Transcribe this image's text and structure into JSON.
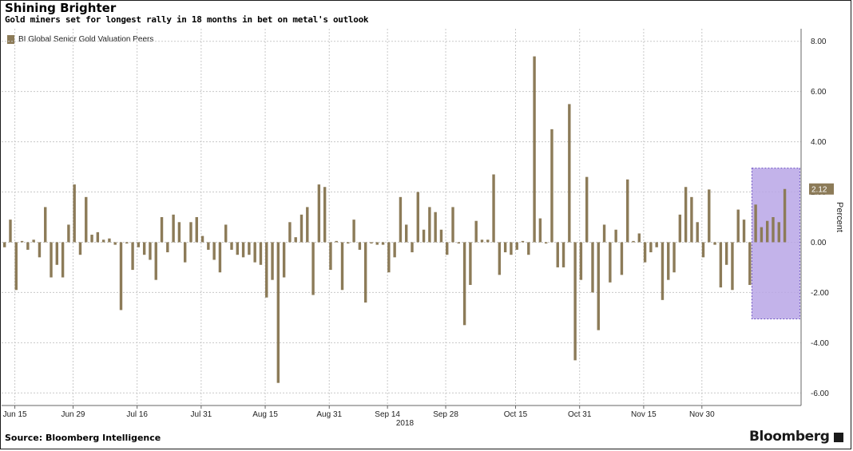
{
  "header": {
    "title": "Shining Brighter",
    "subtitle": "Gold miners set for longest rally in 18 months in bet on metal's outlook"
  },
  "footer": {
    "source": "Source: Bloomberg Intelligence",
    "brand": "Bloomberg"
  },
  "colors": {
    "bar": "#8c7b58",
    "highlight_fill": "#b9a6e6",
    "highlight_stroke": "#6a4fc2",
    "grid": "#c8c8c8"
  },
  "chart_data": {
    "type": "bar",
    "title": "Shining Brighter",
    "subtitle": "Gold miners set for longest rally in 18 months in bet on metal's outlook",
    "ylabel": "Percent",
    "xlabel": "",
    "ylim": [
      -6.5,
      8.5
    ],
    "yticks": [
      -6,
      -4,
      -2,
      0,
      2,
      4,
      6,
      8
    ],
    "ytick_labels": [
      "-6.00",
      "-4.00",
      "-2.00",
      "0.00",
      "2.00",
      "4.00",
      "6.00",
      "8.00"
    ],
    "x_tick_labels": [
      "Jun 15",
      "Jun 29",
      "Jul 16",
      "Jul 31",
      "Aug 15",
      "Aug 31",
      "Sep 14",
      "Sep 28",
      "Oct 15",
      "Oct 31",
      "Nov 15",
      "Nov 30"
    ],
    "x_tick_indices": [
      2,
      12,
      23,
      34,
      45,
      56,
      66,
      76,
      88,
      99,
      110,
      120
    ],
    "x_year_label": "2018",
    "grid": true,
    "legend": "top-left",
    "series": [
      {
        "name": "BI  Global Senior Gold Valuation Peers",
        "values": [
          -0.2,
          0.9,
          -1.9,
          0.05,
          -0.3,
          0.1,
          -0.6,
          1.4,
          -1.4,
          -0.9,
          -1.4,
          0.7,
          2.3,
          -0.5,
          1.8,
          0.3,
          0.4,
          0.1,
          0.15,
          -0.1,
          -2.7,
          -0.05,
          -1.1,
          -0.2,
          -0.5,
          -0.7,
          -1.5,
          1.0,
          -0.4,
          1.1,
          0.8,
          -0.8,
          0.8,
          1.0,
          0.25,
          -0.3,
          -0.7,
          -1.2,
          0.7,
          -0.3,
          -0.5,
          -0.6,
          -0.5,
          -0.8,
          -0.9,
          -2.2,
          -1.5,
          -5.6,
          -1.4,
          0.8,
          0.2,
          1.1,
          1.4,
          -2.1,
          2.3,
          2.2,
          -1.1,
          0.05,
          -1.9,
          -0.05,
          0.9,
          -0.3,
          -2.4,
          -0.05,
          -0.1,
          -0.1,
          -1.2,
          -0.6,
          1.8,
          0.7,
          -0.4,
          2.0,
          0.5,
          1.4,
          1.2,
          0.5,
          -0.5,
          1.4,
          -0.05,
          -3.3,
          -1.7,
          0.85,
          0.1,
          0.1,
          2.7,
          -1.3,
          -0.4,
          -0.5,
          -0.3,
          0.05,
          -0.5,
          7.4,
          0.95,
          -0.05,
          4.5,
          -1.0,
          -1.0,
          5.5,
          -4.7,
          -1.5,
          2.6,
          -2.0,
          -3.5,
          0.7,
          -1.6,
          0.5,
          -1.3,
          2.5,
          0.05,
          0.35,
          -0.8,
          -0.4,
          -0.2,
          -2.3,
          -1.5,
          -1.2,
          1.1,
          2.2,
          1.8,
          0.8,
          -0.6,
          2.1,
          -0.1,
          -1.8,
          -0.9,
          -1.9,
          1.3,
          0.9,
          -1.7,
          1.5,
          0.6,
          0.85,
          1.0,
          0.8,
          2.12
        ]
      }
    ],
    "last_value_label": "2.12",
    "highlight": {
      "from_index": 129,
      "to_index": 136,
      "y_from": -3.05,
      "y_to": 2.95
    }
  }
}
